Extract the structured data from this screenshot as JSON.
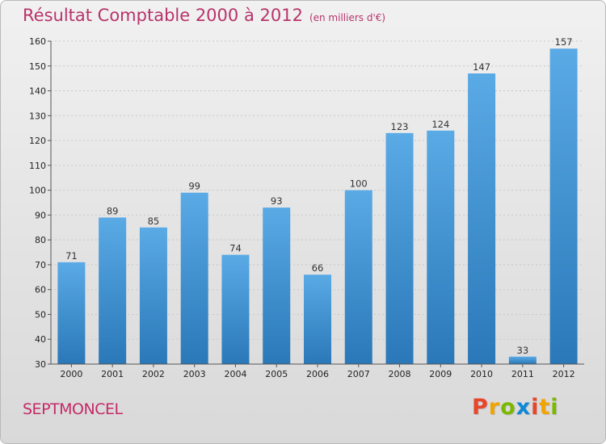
{
  "header": {
    "title": "Résultat Comptable 2000 à 2012",
    "subtitle": "(en milliers d'€)"
  },
  "footer": {
    "commune": "SEPTMONCEL",
    "logo_letters": [
      "P",
      "r",
      "o",
      "x",
      "i",
      "t",
      "i"
    ]
  },
  "colors": {
    "title": "#b8336a",
    "bar_top": "#5aaae6",
    "bar_bottom": "#2a78b8",
    "logo": [
      "#e8462a",
      "#f1a400",
      "#7cb800",
      "#0c88d8",
      "#e8462a",
      "#f1a400",
      "#7cb800"
    ]
  },
  "chart_data": {
    "type": "bar",
    "categories": [
      "2000",
      "2001",
      "2002",
      "2003",
      "2004",
      "2005",
      "2006",
      "2007",
      "2008",
      "2009",
      "2010",
      "2011",
      "2012"
    ],
    "values": [
      71,
      89,
      85,
      99,
      74,
      93,
      66,
      100,
      123,
      124,
      147,
      33,
      157
    ],
    "ylim": [
      30,
      160
    ],
    "yticks": [
      30,
      40,
      50,
      60,
      70,
      80,
      90,
      100,
      110,
      120,
      130,
      140,
      150,
      160
    ],
    "grid": true,
    "legend": "none"
  }
}
